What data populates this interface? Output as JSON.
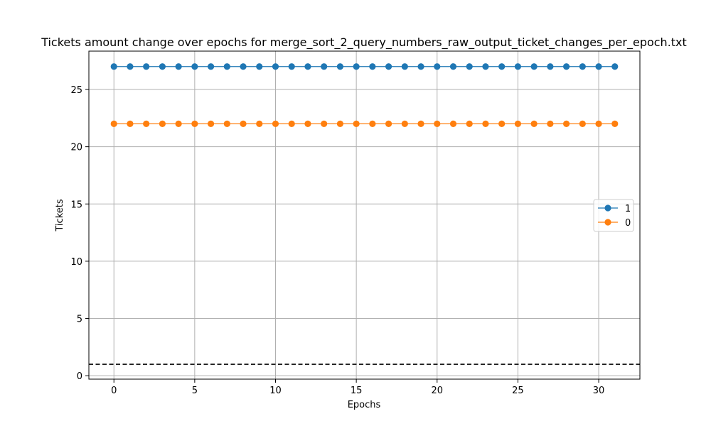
{
  "chart_data": {
    "type": "line",
    "title": "Tickets amount change over epochs for merge_sort_2_query_numbers_raw_output_ticket_changes_per_epoch.txt",
    "xlabel": "Epochs",
    "ylabel": "Tickets",
    "xlim": [
      -1.55,
      32.55
    ],
    "ylim": [
      -0.3,
      28.35
    ],
    "xticks": [
      0,
      5,
      10,
      15,
      20,
      25,
      30
    ],
    "yticks": [
      0,
      5,
      10,
      15,
      20,
      25
    ],
    "grid": true,
    "legend_position": "center-right",
    "x": [
      0,
      1,
      2,
      3,
      4,
      5,
      6,
      7,
      8,
      9,
      10,
      11,
      12,
      13,
      14,
      15,
      16,
      17,
      18,
      19,
      20,
      21,
      22,
      23,
      24,
      25,
      26,
      27,
      28,
      29,
      30,
      31
    ],
    "series": [
      {
        "name": "1",
        "color": "#1f77b4",
        "marker": "circle",
        "values": [
          27,
          27,
          27,
          27,
          27,
          27,
          27,
          27,
          27,
          27,
          27,
          27,
          27,
          27,
          27,
          27,
          27,
          27,
          27,
          27,
          27,
          27,
          27,
          27,
          27,
          27,
          27,
          27,
          27,
          27,
          27,
          27
        ]
      },
      {
        "name": "0",
        "color": "#ff7f0e",
        "marker": "circle",
        "values": [
          22,
          22,
          22,
          22,
          22,
          22,
          22,
          22,
          22,
          22,
          22,
          22,
          22,
          22,
          22,
          22,
          22,
          22,
          22,
          22,
          22,
          22,
          22,
          22,
          22,
          22,
          22,
          22,
          22,
          22,
          22,
          22
        ]
      }
    ],
    "reference_line": {
      "y": 1,
      "style": "dashed",
      "color": "#000000"
    }
  }
}
